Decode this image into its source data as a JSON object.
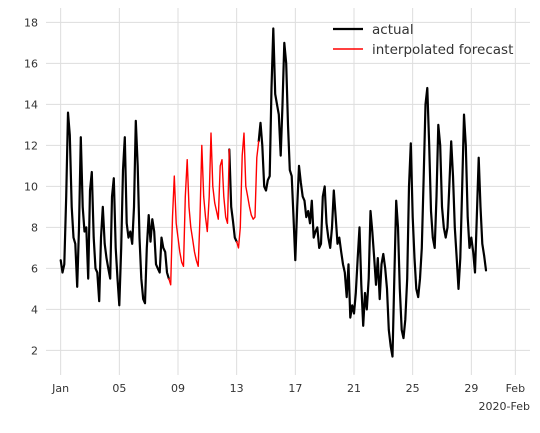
{
  "chart_data": {
    "type": "line",
    "title": "",
    "xlabel": "",
    "ylabel": "",
    "x_unit_label": "2020-Feb",
    "xlim": [
      "2019-12-31",
      "2020-02-02"
    ],
    "ylim": [
      0.8,
      18.7
    ],
    "grid": true,
    "legend_position": "top-right",
    "x_ticks": [
      {
        "date": "2020-01-01",
        "label": "Jan"
      },
      {
        "date": "2020-01-05",
        "label": "05"
      },
      {
        "date": "2020-01-09",
        "label": "09"
      },
      {
        "date": "2020-01-13",
        "label": "13"
      },
      {
        "date": "2020-01-17",
        "label": "17"
      },
      {
        "date": "2020-01-21",
        "label": "21"
      },
      {
        "date": "2020-01-25",
        "label": "25"
      },
      {
        "date": "2020-01-29",
        "label": "29"
      },
      {
        "date": "2020-02-01",
        "label": "Feb"
      }
    ],
    "y_ticks": [
      2,
      4,
      6,
      8,
      10,
      12,
      14,
      16,
      18
    ],
    "series": [
      {
        "name": "actual",
        "color": "#000000",
        "points": [
          [
            "2020-01-01T00:00",
            6.4
          ],
          [
            "2020-01-01T03:00",
            5.8
          ],
          [
            "2020-01-01T06:00",
            6.2
          ],
          [
            "2020-01-01T09:00",
            9.5
          ],
          [
            "2020-01-01T12:00",
            13.6
          ],
          [
            "2020-01-01T15:00",
            12.5
          ],
          [
            "2020-01-01T18:00",
            9.0
          ],
          [
            "2020-01-01T21:00",
            7.5
          ],
          [
            "2020-01-02T00:00",
            7.2
          ],
          [
            "2020-01-02T03:00",
            5.1
          ],
          [
            "2020-01-02T06:00",
            8.0
          ],
          [
            "2020-01-02T09:00",
            12.4
          ],
          [
            "2020-01-02T12:00",
            9.0
          ],
          [
            "2020-01-02T15:00",
            7.8
          ],
          [
            "2020-01-02T18:00",
            8.0
          ],
          [
            "2020-01-02T21:00",
            5.5
          ],
          [
            "2020-01-03T00:00",
            9.8
          ],
          [
            "2020-01-03T03:00",
            10.7
          ],
          [
            "2020-01-03T06:00",
            7.5
          ],
          [
            "2020-01-03T09:00",
            6.0
          ],
          [
            "2020-01-03T12:00",
            5.8
          ],
          [
            "2020-01-03T15:00",
            4.4
          ],
          [
            "2020-01-03T18:00",
            7.5
          ],
          [
            "2020-01-03T21:00",
            9.0
          ],
          [
            "2020-01-04T00:00",
            7.2
          ],
          [
            "2020-01-04T03:00",
            6.5
          ],
          [
            "2020-01-04T06:00",
            6.0
          ],
          [
            "2020-01-04T09:00",
            5.5
          ],
          [
            "2020-01-04T12:00",
            9.5
          ],
          [
            "2020-01-04T15:00",
            10.4
          ],
          [
            "2020-01-04T18:00",
            7.0
          ],
          [
            "2020-01-04T21:00",
            5.5
          ],
          [
            "2020-01-05T00:00",
            4.2
          ],
          [
            "2020-01-05T03:00",
            7.0
          ],
          [
            "2020-01-05T06:00",
            10.8
          ],
          [
            "2020-01-05T09:00",
            12.4
          ],
          [
            "2020-01-05T12:00",
            8.2
          ],
          [
            "2020-01-05T15:00",
            7.5
          ],
          [
            "2020-01-05T18:00",
            7.8
          ],
          [
            "2020-01-05T21:00",
            7.2
          ],
          [
            "2020-01-06T00:00",
            9.0
          ],
          [
            "2020-01-06T03:00",
            13.2
          ],
          [
            "2020-01-06T06:00",
            11.0
          ],
          [
            "2020-01-06T09:00",
            7.5
          ],
          [
            "2020-01-06T12:00",
            5.5
          ],
          [
            "2020-01-06T15:00",
            4.5
          ],
          [
            "2020-01-06T18:00",
            4.3
          ],
          [
            "2020-01-06T21:00",
            7.0
          ],
          [
            "2020-01-07T00:00",
            8.6
          ],
          [
            "2020-01-07T03:00",
            7.3
          ],
          [
            "2020-01-07T06:00",
            8.4
          ],
          [
            "2020-01-07T09:00",
            7.8
          ],
          [
            "2020-01-07T12:00",
            6.2
          ],
          [
            "2020-01-07T15:00",
            6.0
          ],
          [
            "2020-01-07T18:00",
            5.8
          ],
          [
            "2020-01-07T21:00",
            7.5
          ],
          [
            "2020-01-08T00:00",
            7.0
          ],
          [
            "2020-01-08T03:00",
            6.8
          ],
          [
            "2020-01-08T06:00",
            5.8
          ],
          [
            "2020-01-08T09:00",
            5.5
          ]
        ]
      },
      {
        "name": "actual",
        "color": "#000000",
        "points": [
          [
            "2020-01-12T12:00",
            11.8
          ],
          [
            "2020-01-12T15:00",
            9.0
          ],
          [
            "2020-01-12T18:00",
            8.3
          ],
          [
            "2020-01-12T21:00",
            7.5
          ],
          [
            "2020-01-13T00:00",
            7.3
          ]
        ]
      },
      {
        "name": "actual",
        "color": "#000000",
        "points": [
          [
            "2020-01-14T12:00",
            12.2
          ],
          [
            "2020-01-14T15:00",
            13.1
          ],
          [
            "2020-01-14T18:00",
            12.0
          ],
          [
            "2020-01-14T21:00",
            10.0
          ],
          [
            "2020-01-15T00:00",
            9.8
          ],
          [
            "2020-01-15T03:00",
            10.3
          ],
          [
            "2020-01-15T06:00",
            10.5
          ],
          [
            "2020-01-15T09:00",
            14.8
          ],
          [
            "2020-01-15T12:00",
            17.7
          ],
          [
            "2020-01-15T15:00",
            14.5
          ],
          [
            "2020-01-15T18:00",
            14.0
          ],
          [
            "2020-01-15T21:00",
            13.5
          ],
          [
            "2020-01-16T00:00",
            11.5
          ],
          [
            "2020-01-16T03:00",
            14.0
          ],
          [
            "2020-01-16T06:00",
            17.0
          ],
          [
            "2020-01-16T09:00",
            16.0
          ],
          [
            "2020-01-16T12:00",
            13.0
          ],
          [
            "2020-01-16T15:00",
            10.8
          ],
          [
            "2020-01-16T18:00",
            10.5
          ],
          [
            "2020-01-16T21:00",
            8.5
          ],
          [
            "2020-01-17T00:00",
            6.4
          ],
          [
            "2020-01-17T03:00",
            9.0
          ],
          [
            "2020-01-17T06:00",
            11.0
          ],
          [
            "2020-01-17T09:00",
            10.2
          ],
          [
            "2020-01-17T12:00",
            9.5
          ],
          [
            "2020-01-17T15:00",
            9.3
          ],
          [
            "2020-01-17T18:00",
            8.5
          ],
          [
            "2020-01-17T21:00",
            8.8
          ],
          [
            "2020-01-18T00:00",
            8.2
          ],
          [
            "2020-01-18T03:00",
            9.3
          ],
          [
            "2020-01-18T06:00",
            7.5
          ],
          [
            "2020-01-18T09:00",
            7.8
          ],
          [
            "2020-01-18T12:00",
            8.0
          ],
          [
            "2020-01-18T15:00",
            7.0
          ],
          [
            "2020-01-18T18:00",
            7.2
          ],
          [
            "2020-01-18T21:00",
            9.5
          ],
          [
            "2020-01-19T00:00",
            10.0
          ],
          [
            "2020-01-19T03:00",
            8.2
          ],
          [
            "2020-01-19T06:00",
            7.5
          ],
          [
            "2020-01-19T09:00",
            7.0
          ],
          [
            "2020-01-19T12:00",
            8.0
          ],
          [
            "2020-01-19T15:00",
            9.8
          ],
          [
            "2020-01-19T18:00",
            8.5
          ],
          [
            "2020-01-19T21:00",
            7.2
          ],
          [
            "2020-01-20T00:00",
            7.5
          ],
          [
            "2020-01-20T03:00",
            6.8
          ],
          [
            "2020-01-20T06:00",
            6.2
          ],
          [
            "2020-01-20T09:00",
            5.8
          ],
          [
            "2020-01-20T12:00",
            4.6
          ],
          [
            "2020-01-20T15:00",
            6.2
          ],
          [
            "2020-01-20T18:00",
            3.6
          ],
          [
            "2020-01-20T21:00",
            4.2
          ],
          [
            "2020-01-21T00:00",
            3.8
          ],
          [
            "2020-01-21T03:00",
            4.8
          ],
          [
            "2020-01-21T06:00",
            6.5
          ],
          [
            "2020-01-21T09:00",
            8.0
          ],
          [
            "2020-01-21T12:00",
            5.2
          ],
          [
            "2020-01-21T15:00",
            3.2
          ],
          [
            "2020-01-21T18:00",
            4.8
          ],
          [
            "2020-01-21T21:00",
            4.0
          ],
          [
            "2020-01-22T00:00",
            5.5
          ],
          [
            "2020-01-22T03:00",
            8.8
          ],
          [
            "2020-01-22T06:00",
            7.8
          ],
          [
            "2020-01-22T09:00",
            6.5
          ],
          [
            "2020-01-22T12:00",
            5.2
          ],
          [
            "2020-01-22T15:00",
            6.5
          ],
          [
            "2020-01-22T18:00",
            4.5
          ],
          [
            "2020-01-22T21:00",
            6.2
          ],
          [
            "2020-01-23T00:00",
            6.7
          ],
          [
            "2020-01-23T03:00",
            6.0
          ],
          [
            "2020-01-23T06:00",
            5.0
          ],
          [
            "2020-01-23T09:00",
            3.0
          ],
          [
            "2020-01-23T12:00",
            2.2
          ],
          [
            "2020-01-23T15:00",
            1.7
          ],
          [
            "2020-01-23T18:00",
            5.5
          ],
          [
            "2020-01-23T21:00",
            9.3
          ],
          [
            "2020-01-24T00:00",
            8.0
          ],
          [
            "2020-01-24T03:00",
            5.0
          ],
          [
            "2020-01-24T06:00",
            3.0
          ],
          [
            "2020-01-24T09:00",
            2.6
          ],
          [
            "2020-01-24T12:00",
            3.5
          ],
          [
            "2020-01-24T15:00",
            5.5
          ],
          [
            "2020-01-24T18:00",
            10.0
          ],
          [
            "2020-01-24T21:00",
            12.1
          ],
          [
            "2020-01-25T00:00",
            8.5
          ],
          [
            "2020-01-25T03:00",
            6.5
          ],
          [
            "2020-01-25T06:00",
            5.0
          ],
          [
            "2020-01-25T09:00",
            4.6
          ],
          [
            "2020-01-25T12:00",
            5.5
          ],
          [
            "2020-01-25T15:00",
            7.0
          ],
          [
            "2020-01-25T18:00",
            10.5
          ],
          [
            "2020-01-25T21:00",
            14.0
          ],
          [
            "2020-01-26T00:00",
            14.8
          ],
          [
            "2020-01-26T03:00",
            12.0
          ],
          [
            "2020-01-26T06:00",
            8.8
          ],
          [
            "2020-01-26T09:00",
            7.5
          ],
          [
            "2020-01-26T12:00",
            7.0
          ],
          [
            "2020-01-26T15:00",
            9.5
          ],
          [
            "2020-01-26T18:00",
            13.0
          ],
          [
            "2020-01-26T21:00",
            12.0
          ],
          [
            "2020-01-27T00:00",
            9.0
          ],
          [
            "2020-01-27T03:00",
            8.0
          ],
          [
            "2020-01-27T06:00",
            7.5
          ],
          [
            "2020-01-27T09:00",
            8.0
          ],
          [
            "2020-01-27T12:00",
            10.0
          ],
          [
            "2020-01-27T15:00",
            12.2
          ],
          [
            "2020-01-27T18:00",
            10.5
          ],
          [
            "2020-01-27T21:00",
            8.0
          ],
          [
            "2020-01-28T00:00",
            6.5
          ],
          [
            "2020-01-28T03:00",
            5.0
          ],
          [
            "2020-01-28T06:00",
            6.5
          ],
          [
            "2020-01-28T09:00",
            10.0
          ],
          [
            "2020-01-28T12:00",
            13.5
          ],
          [
            "2020-01-28T15:00",
            12.0
          ],
          [
            "2020-01-28T18:00",
            8.5
          ],
          [
            "2020-01-28T21:00",
            7.0
          ],
          [
            "2020-01-29T00:00",
            7.5
          ],
          [
            "2020-01-29T03:00",
            6.8
          ],
          [
            "2020-01-29T06:00",
            5.8
          ],
          [
            "2020-01-29T09:00",
            8.5
          ],
          [
            "2020-01-29T12:00",
            11.4
          ],
          [
            "2020-01-29T15:00",
            9.0
          ],
          [
            "2020-01-29T18:00",
            7.2
          ],
          [
            "2020-01-29T21:00",
            6.6
          ],
          [
            "2020-01-30T00:00",
            5.9
          ]
        ]
      },
      {
        "name": "interpolated forecast",
        "color": "#ff0000",
        "points": [
          [
            "2020-01-08T09:00",
            5.5
          ],
          [
            "2020-01-08T12:00",
            5.2
          ],
          [
            "2020-01-08T15:00",
            8.5
          ],
          [
            "2020-01-08T18:00",
            10.5
          ],
          [
            "2020-01-08T21:00",
            8.2
          ],
          [
            "2020-01-09T00:00",
            7.5
          ],
          [
            "2020-01-09T03:00",
            6.8
          ],
          [
            "2020-01-09T06:00",
            6.3
          ],
          [
            "2020-01-09T09:00",
            6.1
          ],
          [
            "2020-01-09T12:00",
            9.5
          ],
          [
            "2020-01-09T15:00",
            11.3
          ],
          [
            "2020-01-09T18:00",
            9.0
          ],
          [
            "2020-01-09T21:00",
            8.0
          ],
          [
            "2020-01-10T00:00",
            7.4
          ],
          [
            "2020-01-10T03:00",
            6.8
          ],
          [
            "2020-01-10T06:00",
            6.4
          ],
          [
            "2020-01-10T09:00",
            6.1
          ],
          [
            "2020-01-10T12:00",
            8.5
          ],
          [
            "2020-01-10T15:00",
            12.0
          ],
          [
            "2020-01-10T18:00",
            9.5
          ],
          [
            "2020-01-10T21:00",
            8.5
          ],
          [
            "2020-01-11T00:00",
            7.8
          ],
          [
            "2020-01-11T03:00",
            9.5
          ],
          [
            "2020-01-11T06:00",
            12.6
          ],
          [
            "2020-01-11T09:00",
            10.0
          ],
          [
            "2020-01-11T12:00",
            9.2
          ],
          [
            "2020-01-11T15:00",
            8.8
          ],
          [
            "2020-01-11T18:00",
            8.4
          ],
          [
            "2020-01-11T21:00",
            11.0
          ],
          [
            "2020-01-12T00:00",
            11.3
          ],
          [
            "2020-01-12T03:00",
            9.5
          ],
          [
            "2020-01-12T06:00",
            8.5
          ],
          [
            "2020-01-12T09:00",
            8.2
          ],
          [
            "2020-01-12T12:00",
            11.8
          ]
        ]
      },
      {
        "name": "interpolated forecast",
        "color": "#ff0000",
        "points": [
          [
            "2020-01-13T00:00",
            7.3
          ],
          [
            "2020-01-13T03:00",
            7.0
          ],
          [
            "2020-01-13T06:00",
            8.0
          ],
          [
            "2020-01-13T09:00",
            11.5
          ],
          [
            "2020-01-13T12:00",
            12.6
          ],
          [
            "2020-01-13T15:00",
            10.0
          ],
          [
            "2020-01-13T18:00",
            9.5
          ],
          [
            "2020-01-13T21:00",
            9.0
          ],
          [
            "2020-01-14T00:00",
            8.6
          ],
          [
            "2020-01-14T03:00",
            8.4
          ],
          [
            "2020-01-14T06:00",
            8.5
          ],
          [
            "2020-01-14T09:00",
            11.4
          ],
          [
            "2020-01-14T12:00",
            12.2
          ]
        ]
      }
    ],
    "legend": [
      {
        "label": "actual",
        "color": "#000000",
        "width": 2.2
      },
      {
        "label": "interpolated forecast",
        "color": "#ff0000",
        "width": 1.4
      }
    ]
  }
}
